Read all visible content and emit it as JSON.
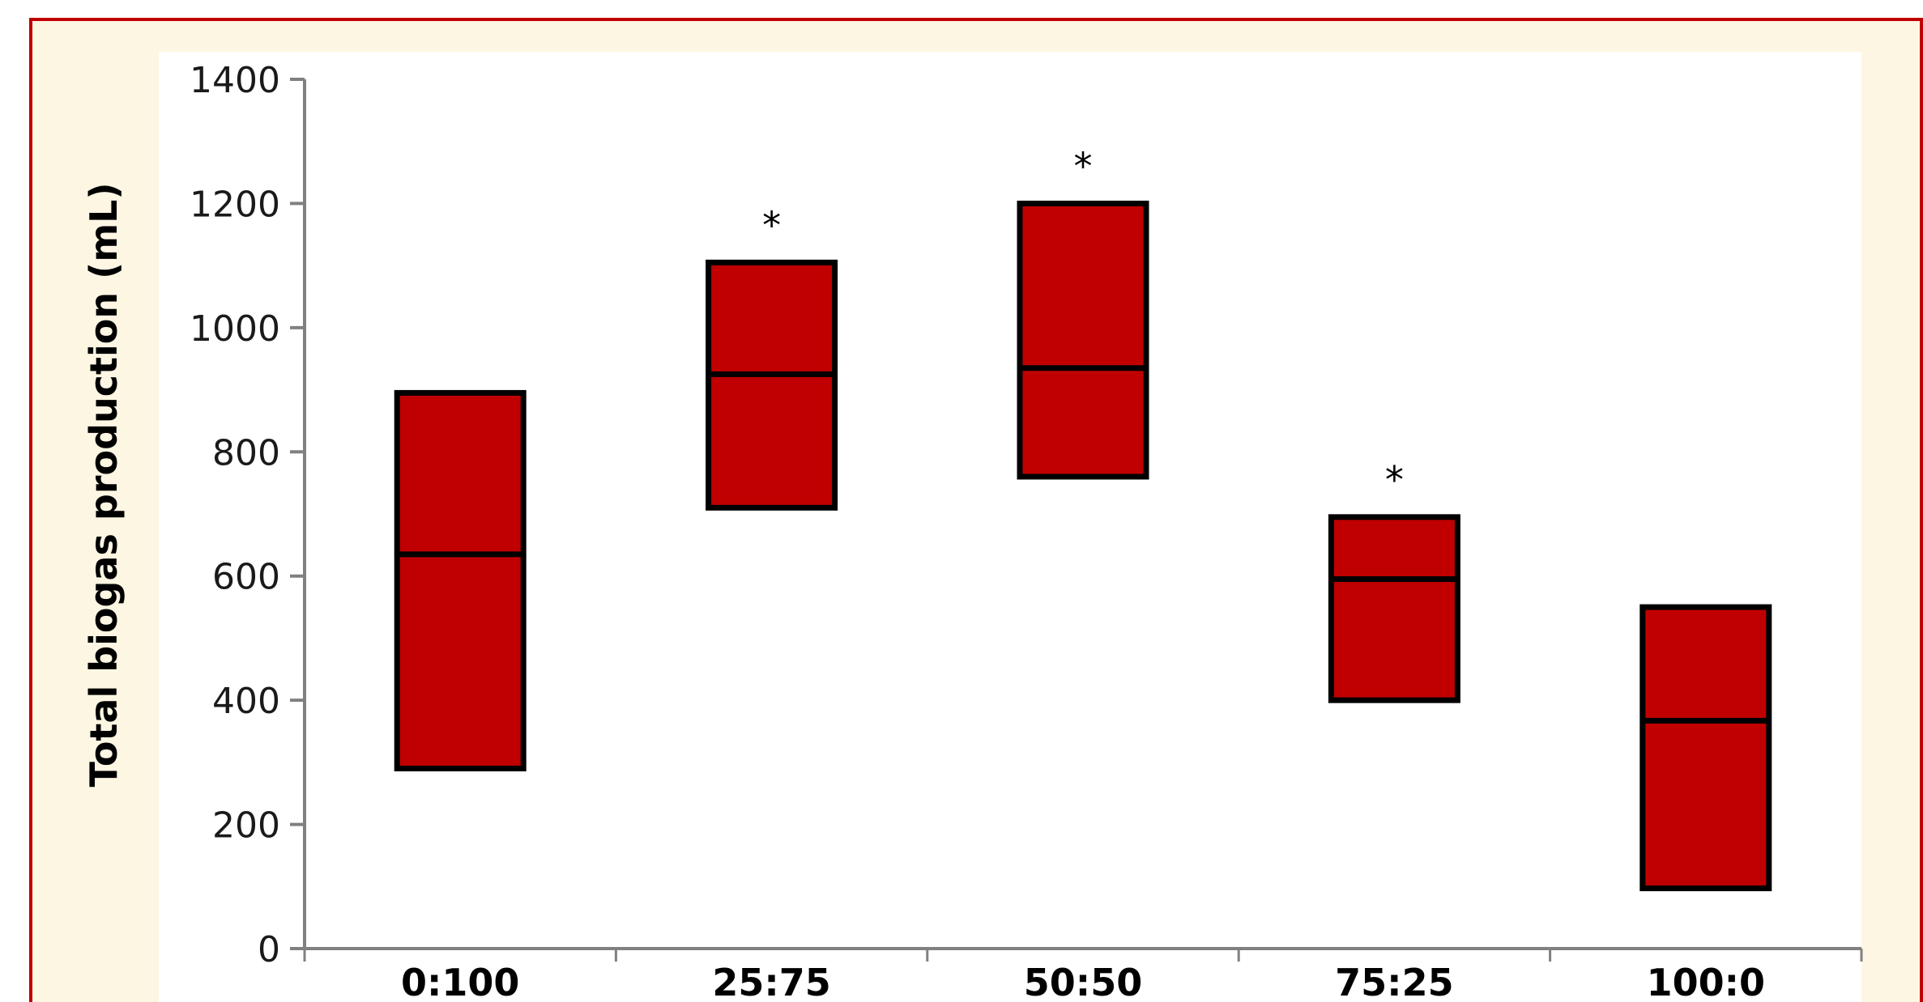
{
  "chart_data": {
    "type": "box",
    "ylabel": "Total biogas production (mL)",
    "xlabel": "",
    "ylim": [
      0,
      1400
    ],
    "yticks": [
      0,
      200,
      400,
      600,
      800,
      1000,
      1200,
      1400
    ],
    "categories": [
      "0:100",
      "25:75",
      "50:50",
      "75:25",
      "100:0"
    ],
    "boxes": [
      {
        "category": "0:100",
        "low": 290,
        "median": 635,
        "high": 895,
        "annotation": ""
      },
      {
        "category": "25:75",
        "low": 710,
        "median": 925,
        "high": 1105,
        "annotation": "*"
      },
      {
        "category": "50:50",
        "low": 760,
        "median": 935,
        "high": 1200,
        "annotation": "*"
      },
      {
        "category": "75:25",
        "low": 400,
        "median": 595,
        "high": 695,
        "annotation": "*"
      },
      {
        "category": "100:0",
        "low": 97,
        "median": 367,
        "high": 550,
        "annotation": ""
      }
    ],
    "colors": {
      "box_fill": "#c00000",
      "box_stroke": "#000000",
      "axis": "#808080",
      "frame_border": "#c00000",
      "frame_background": "#fdf6e3",
      "plot_background": "#ffffff"
    },
    "grid": false,
    "legend": "none"
  }
}
